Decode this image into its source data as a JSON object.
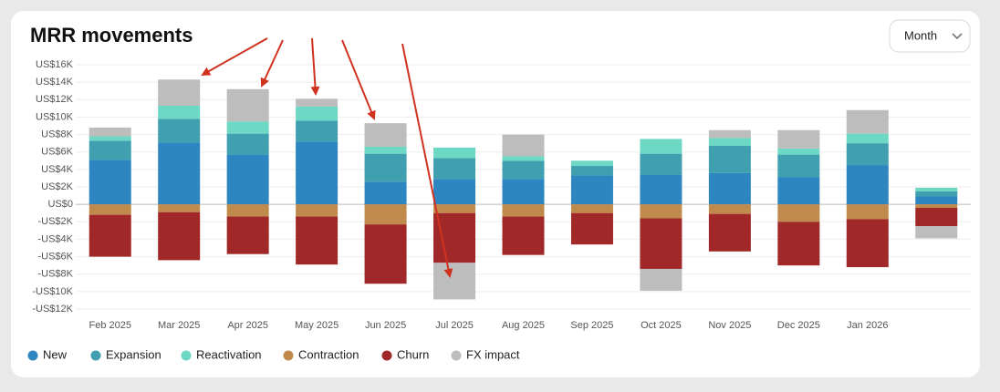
{
  "chart_data": {
    "type": "stacked-bar",
    "title": "MRR movements",
    "categories": [
      "Feb 2025",
      "Mar 2025",
      "Apr 2025",
      "May 2025",
      "Jun 2025",
      "Jul 2025",
      "Aug 2025",
      "Sep 2025",
      "Oct 2025",
      "Nov 2025",
      "Dec 2025",
      "Jan 2026",
      null
    ],
    "series": [
      {
        "name": "New",
        "color": "#2e86c1",
        "values": [
          5100,
          7100,
          5700,
          7200,
          2600,
          2900,
          2900,
          3300,
          3400,
          3600,
          3100,
          4500,
          900
        ]
      },
      {
        "name": "Expansion",
        "color": "#40a0b0",
        "values": [
          2200,
          2700,
          2400,
          2400,
          3200,
          2400,
          2100,
          1100,
          2400,
          3100,
          2600,
          2500,
          600
        ]
      },
      {
        "name": "Reactivation",
        "color": "#6dd8c4",
        "values": [
          500,
          1500,
          1400,
          1600,
          800,
          1200,
          500,
          600,
          1700,
          900,
          700,
          1100,
          400
        ]
      },
      {
        "name": "Contraction",
        "color": "#c08a4c",
        "values": [
          -1200,
          -900,
          -1400,
          -1400,
          -2300,
          -1000,
          -1400,
          -1000,
          -1600,
          -1100,
          -2000,
          -1700,
          -400
        ]
      },
      {
        "name": "Churn",
        "color": "#a02828",
        "values": [
          -4800,
          -5500,
          -4300,
          -5500,
          -6800,
          -5700,
          -4400,
          -3600,
          -5800,
          -4300,
          -5000,
          -5500,
          -2100
        ]
      },
      {
        "name": "FX impact",
        "color": "#bdbdbd",
        "values": [
          1000,
          3000,
          3700,
          900,
          2700,
          -4200,
          2500,
          0,
          -2500,
          900,
          2100,
          2700,
          -1400
        ]
      }
    ],
    "ylim": [
      -12000,
      16000
    ],
    "yticks": [
      {
        "value": 16000,
        "label": "US$16K"
      },
      {
        "value": 14000,
        "label": "US$14K"
      },
      {
        "value": 12000,
        "label": "US$12K"
      },
      {
        "value": 10000,
        "label": "US$10K"
      },
      {
        "value": 8000,
        "label": "US$8K"
      },
      {
        "value": 6000,
        "label": "US$6K"
      },
      {
        "value": 4000,
        "label": "US$4K"
      },
      {
        "value": 2000,
        "label": "US$2K"
      },
      {
        "value": 0,
        "label": "US$0"
      },
      {
        "value": -2000,
        "label": "-US$2K"
      },
      {
        "value": -4000,
        "label": "-US$4K"
      },
      {
        "value": -6000,
        "label": "-US$6K"
      },
      {
        "value": -8000,
        "label": "-US$8K"
      },
      {
        "value": -10000,
        "label": "-US$10K"
      },
      {
        "value": -12000,
        "label": "-US$12K"
      }
    ],
    "grid": true
  },
  "controls": {
    "period": "Month"
  }
}
